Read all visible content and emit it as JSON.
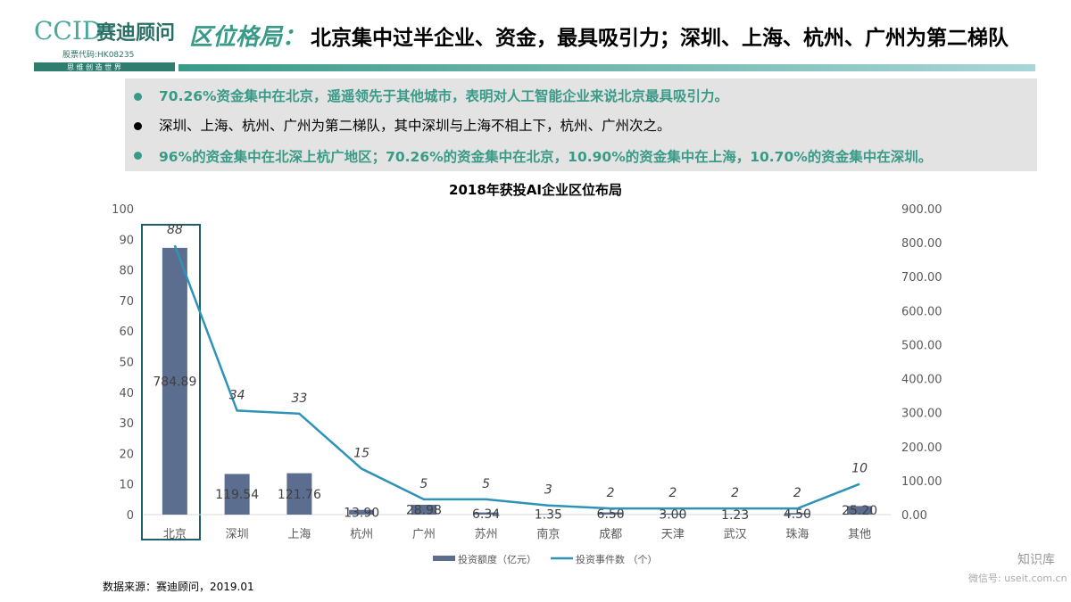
{
  "header": {
    "logo": "CCID",
    "logo_cn": "赛迪顾问",
    "stock_code": "股票代码:HK08235",
    "slogan": "思 维 创 造 世 界",
    "title_highlight": "区位格局：",
    "title": "北京集中过半企业、资金，最具吸引力；深圳、上海、杭州、广州为第二梯队"
  },
  "bullets": [
    "70.26%资金集中在北京，遥遥领先于其他城市，表明对人工智能企业来说北京最具吸引力。",
    "深圳、上海、杭州、广州为第二梯队，其中深圳与上海不相上下，杭州、广州次之。",
    "96%的资金集中在北深上杭广地区；70.26%的资金集中在北京，10.90%的资金集中在上海，10.70%的资金集中在深圳。"
  ],
  "chart_data": {
    "type": "bar-line",
    "title": "2018年获投AI企业区位布局",
    "categories": [
      "北京",
      "深圳",
      "上海",
      "杭州",
      "广州",
      "苏州",
      "南京",
      "成都",
      "天津",
      "武汉",
      "珠海",
      "其他"
    ],
    "series": [
      {
        "name": "投资额度（亿元）",
        "type": "bar",
        "axis": "y2",
        "color": "#5b6e90",
        "values": [
          784.89,
          119.54,
          121.76,
          13.9,
          28.98,
          6.34,
          1.35,
          6.5,
          3,
          1.23,
          4.5,
          25.2
        ],
        "value_labels": [
          "784.89",
          "119.54",
          "121.76",
          "13.90",
          "28.98",
          "6.34",
          "1.35",
          "6.50",
          "3.00",
          "1.23",
          "4.50",
          "25.20"
        ]
      },
      {
        "name": "投资事件数 （个）",
        "type": "line",
        "axis": "y",
        "color": "#2e93b5",
        "values": [
          88,
          34,
          33,
          15,
          5,
          5,
          3,
          2,
          2,
          2,
          2,
          10
        ]
      }
    ],
    "ylim": [
      0,
      100
    ],
    "yticks": [
      0,
      10,
      20,
      30,
      40,
      50,
      60,
      70,
      80,
      90,
      100
    ],
    "y2lim": [
      0,
      900
    ],
    "y2ticks": [
      {
        "value": 0,
        "label": "0.00"
      },
      {
        "value": 100,
        "label": "100.00"
      },
      {
        "value": 200,
        "label": "200.00"
      },
      {
        "value": 300,
        "label": "300.00"
      },
      {
        "value": 400,
        "label": "400.00"
      },
      {
        "value": 500,
        "label": "500.00"
      },
      {
        "value": 600,
        "label": "600.00"
      },
      {
        "value": 700,
        "label": "700.00"
      },
      {
        "value": 800,
        "label": "800.00"
      },
      {
        "value": 900,
        "label": "900.00"
      }
    ],
    "legend": "bottom"
  },
  "source": "数据来源：赛迪顾问，2019.01",
  "watermark": "知识库",
  "watermark_sub": "微信号: useit.com.cn"
}
